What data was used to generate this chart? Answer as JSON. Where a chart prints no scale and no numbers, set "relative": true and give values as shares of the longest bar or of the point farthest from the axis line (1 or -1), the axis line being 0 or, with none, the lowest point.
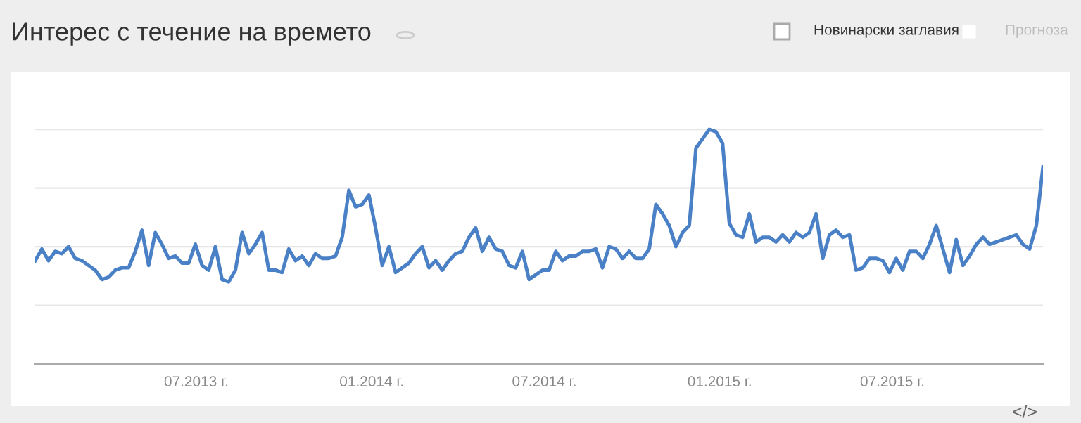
{
  "chart_data": {
    "type": "line",
    "title": "Интерес с течение на времето",
    "annotations": [
      "Новинарски заглавия",
      "Прогноза",
      "</>"
    ],
    "relative": true,
    "grid": "y",
    "legend": false,
    "marker": "none",
    "line_style": "solid",
    "xlim": [
      "2013-01-13",
      "2015-12-06"
    ],
    "xticks": [
      {
        "value": "2013-07-01",
        "label": "07.2013 г."
      },
      {
        "value": "2014-01-01",
        "label": "01.2014 г."
      },
      {
        "value": "2014-07-01",
        "label": "07.2014 г."
      },
      {
        "value": "2015-01-01",
        "label": "01.2015 г."
      },
      {
        "value": "2015-07-01",
        "label": "07.2015 г."
      }
    ],
    "x": [
      "2013-01-13",
      "2013-01-20",
      "2013-01-27",
      "2013-02-03",
      "2013-02-10",
      "2013-02-17",
      "2013-02-24",
      "2013-03-03",
      "2013-03-10",
      "2013-03-17",
      "2013-03-24",
      "2013-03-31",
      "2013-04-07",
      "2013-04-14",
      "2013-04-21",
      "2013-04-28",
      "2013-05-05",
      "2013-05-12",
      "2013-05-19",
      "2013-05-26",
      "2013-06-02",
      "2013-06-09",
      "2013-06-16",
      "2013-06-23",
      "2013-06-30",
      "2013-07-07",
      "2013-07-14",
      "2013-07-21",
      "2013-07-28",
      "2013-08-04",
      "2013-08-11",
      "2013-08-18",
      "2013-08-25",
      "2013-09-01",
      "2013-09-08",
      "2013-09-15",
      "2013-09-22",
      "2013-09-29",
      "2013-10-06",
      "2013-10-13",
      "2013-10-20",
      "2013-10-27",
      "2013-11-03",
      "2013-11-10",
      "2013-11-17",
      "2013-11-24",
      "2013-12-01",
      "2013-12-08",
      "2013-12-15",
      "2013-12-22",
      "2013-12-29",
      "2014-01-05",
      "2014-01-12",
      "2014-01-19",
      "2014-01-26",
      "2014-02-02",
      "2014-02-09",
      "2014-02-16",
      "2014-02-23",
      "2014-03-02",
      "2014-03-09",
      "2014-03-16",
      "2014-03-23",
      "2014-03-30",
      "2014-04-06",
      "2014-04-13",
      "2014-04-20",
      "2014-04-27",
      "2014-05-04",
      "2014-05-11",
      "2014-05-18",
      "2014-05-25",
      "2014-06-01",
      "2014-06-08",
      "2014-06-15",
      "2014-06-22",
      "2014-06-29",
      "2014-07-06",
      "2014-07-13",
      "2014-07-20",
      "2014-07-27",
      "2014-08-03",
      "2014-08-10",
      "2014-08-17",
      "2014-08-24",
      "2014-08-31",
      "2014-09-07",
      "2014-09-14",
      "2014-09-21",
      "2014-09-28",
      "2014-10-05",
      "2014-10-12",
      "2014-10-19",
      "2014-10-26",
      "2014-11-02",
      "2014-11-09",
      "2014-11-16",
      "2014-11-23",
      "2014-11-30",
      "2014-12-07",
      "2014-12-14",
      "2014-12-21",
      "2014-12-28",
      "2015-01-04",
      "2015-01-11",
      "2015-01-18",
      "2015-01-25",
      "2015-02-01",
      "2015-02-08",
      "2015-02-15",
      "2015-02-22",
      "2015-03-01",
      "2015-03-08",
      "2015-03-15",
      "2015-03-22",
      "2015-03-29",
      "2015-04-05",
      "2015-04-12",
      "2015-04-19",
      "2015-04-26",
      "2015-05-03",
      "2015-05-10",
      "2015-05-17",
      "2015-05-24",
      "2015-05-31",
      "2015-06-07",
      "2015-06-14",
      "2015-06-21",
      "2015-06-28",
      "2015-07-05",
      "2015-07-12",
      "2015-07-19",
      "2015-07-26",
      "2015-08-02",
      "2015-08-09",
      "2015-08-16",
      "2015-08-23",
      "2015-08-30",
      "2015-09-06",
      "2015-09-13",
      "2015-09-20",
      "2015-09-27",
      "2015-10-04",
      "2015-10-11",
      "2015-10-18",
      "2015-10-25",
      "2015-11-01",
      "2015-11-08",
      "2015-11-15",
      "2015-11-22",
      "2015-11-29",
      "2015-12-06"
    ],
    "series": [
      {
        "color": "#4a80c6",
        "values": [
          0.44,
          0.49,
          0.44,
          0.48,
          0.47,
          0.5,
          0.45,
          0.44,
          0.42,
          0.4,
          0.36,
          0.37,
          0.4,
          0.41,
          0.41,
          0.48,
          0.57,
          0.42,
          0.56,
          0.51,
          0.45,
          0.46,
          0.43,
          0.43,
          0.51,
          0.42,
          0.4,
          0.5,
          0.36,
          0.35,
          0.4,
          0.56,
          0.47,
          0.51,
          0.56,
          0.4,
          0.4,
          0.39,
          0.49,
          0.44,
          0.46,
          0.42,
          0.47,
          0.45,
          0.45,
          0.46,
          0.54,
          0.74,
          0.67,
          0.68,
          0.72,
          0.58,
          0.42,
          0.5,
          0.39,
          0.41,
          0.43,
          0.47,
          0.5,
          0.41,
          0.44,
          0.4,
          0.44,
          0.47,
          0.48,
          0.54,
          0.58,
          0.48,
          0.54,
          0.49,
          0.48,
          0.42,
          0.41,
          0.48,
          0.36,
          0.38,
          0.4,
          0.4,
          0.48,
          0.44,
          0.46,
          0.46,
          0.48,
          0.48,
          0.49,
          0.41,
          0.5,
          0.49,
          0.45,
          0.48,
          0.45,
          0.45,
          0.49,
          0.68,
          0.64,
          0.59,
          0.5,
          0.56,
          0.59,
          0.92,
          0.96,
          1,
          0.99,
          0.94,
          0.6,
          0.55,
          0.54,
          0.64,
          0.52,
          0.54,
          0.54,
          0.52,
          0.55,
          0.52,
          0.56,
          0.54,
          0.56,
          0.64,
          0.45,
          0.55,
          0.57,
          0.54,
          0.55,
          0.4,
          0.41,
          0.45,
          0.45,
          0.44,
          0.39,
          0.45,
          0.4,
          0.48,
          0.48,
          0.45,
          0.51,
          0.59,
          0.49,
          0.39,
          0.53,
          0.42,
          0.46,
          0.51,
          0.54,
          0.51,
          0.52,
          0.53,
          0.54,
          0.55,
          0.51,
          0.49,
          0.59,
          0.84
        ]
      }
    ]
  }
}
